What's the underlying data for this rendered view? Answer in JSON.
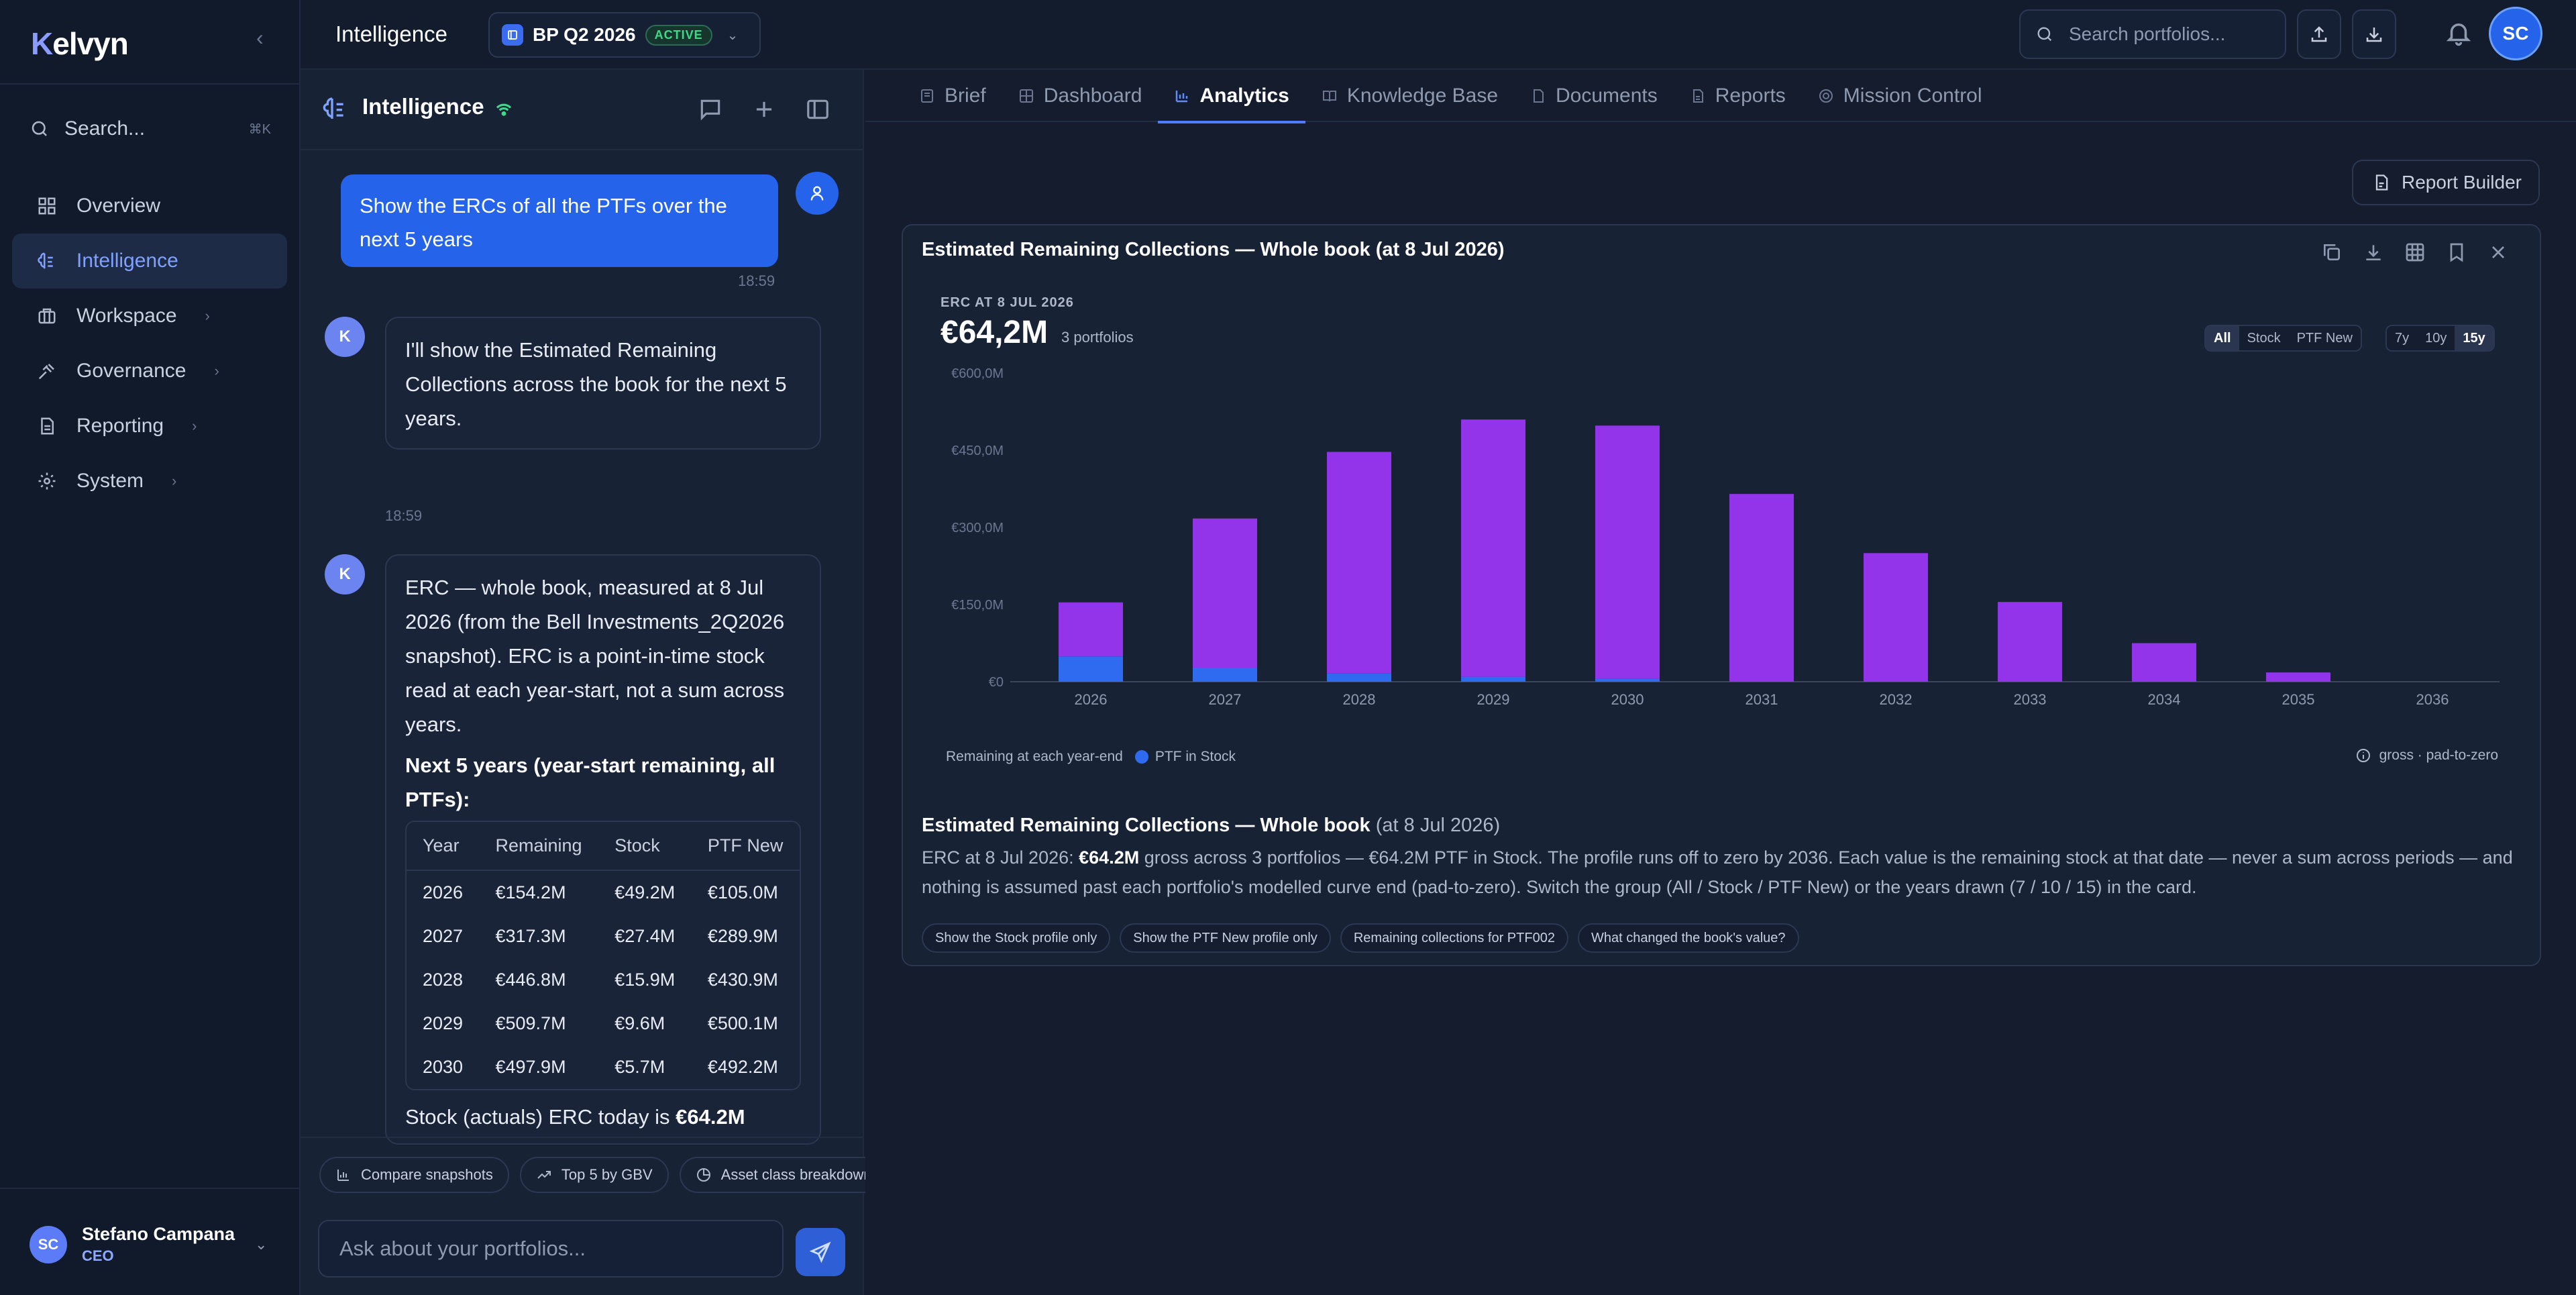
{
  "sidebar": {
    "logo_k": "K",
    "logo_rest": "elvyn",
    "search_label": "Search...",
    "search_kbd": "⌘K",
    "items": [
      {
        "label": "Overview",
        "icon": "grid-icon"
      },
      {
        "label": "Intelligence",
        "icon": "brain-icon",
        "active": true
      },
      {
        "label": "Workspace",
        "icon": "briefcase-icon"
      },
      {
        "label": "Governance",
        "icon": "gavel-icon"
      },
      {
        "label": "Reporting",
        "icon": "document-icon"
      },
      {
        "label": "System",
        "icon": "gear-icon"
      }
    ],
    "user": {
      "initials": "SC",
      "name": "Stefano Campana",
      "role": "CEO"
    }
  },
  "topbar": {
    "title": "Intelligence",
    "project": "BP Q2 2026",
    "project_status": "ACTIVE",
    "search_placeholder": "Search portfolios...",
    "avatar_initials": "SC"
  },
  "chat": {
    "title": "Intelligence",
    "user_message": "Show the ERCs of all the PTFs over the next 5 years",
    "user_time": "18:59",
    "bot_avatar": "K",
    "bot_msg1": "I'll show the Estimated Remaining Collections across the book for the next 5 years.",
    "bot_time": "18:59",
    "bot_msg2": "ERC — whole book, measured at 8 Jul 2026 (from the Bell Investments_2Q2026 snapshot). ERC is a point-in-time stock read at each year-start, not a sum across years.",
    "bot_heading": "Next 5 years (year-start remaining, all PTFs):",
    "table_headers": [
      "Year",
      "Remaining",
      "Stock",
      "PTF New"
    ],
    "table_rows": [
      [
        "2026",
        "€154.2M",
        "€49.2M",
        "€105.0M"
      ],
      [
        "2027",
        "€317.3M",
        "€27.4M",
        "€289.9M"
      ],
      [
        "2028",
        "€446.8M",
        "€15.9M",
        "€430.9M"
      ],
      [
        "2029",
        "€509.7M",
        "€9.6M",
        "€500.1M"
      ],
      [
        "2030",
        "€497.9M",
        "€5.7M",
        "€492.2M"
      ]
    ],
    "bot_tail_prefix": "Stock (actuals) ERC today is ",
    "bot_tail_value": "€64.2M",
    "quick_chips": [
      "Compare snapshots",
      "Top 5 by GBV",
      "Asset class breakdown"
    ],
    "input_placeholder": "Ask about your portfolios..."
  },
  "tabs": [
    "Brief",
    "Dashboard",
    "Analytics",
    "Knowledge Base",
    "Documents",
    "Reports",
    "Mission Control"
  ],
  "active_tab": "Analytics",
  "report_builder_label": "Report Builder",
  "card": {
    "title": "Estimated Remaining Collections — Whole book (at 8 Jul 2026)",
    "erc_label": "ERC AT 8 JUL 2026",
    "erc_value": "€64,2M",
    "erc_sub": "3 portfolios",
    "group_options": [
      "All",
      "Stock",
      "PTF New"
    ],
    "group_selected": "All",
    "range_options": [
      "7y",
      "10y",
      "15y"
    ],
    "range_selected": "15y",
    "legend_text": "Remaining at each year-end",
    "legend_series": "PTF in Stock",
    "gross_note": "gross · pad-to-zero",
    "summary_title_bold": "Estimated Remaining Collections — Whole book",
    "summary_title_dim": " (at 8 Jul 2026)",
    "summary_prefix": "ERC at 8 Jul 2026: ",
    "summary_value": "€64.2M",
    "summary_rest": " gross across 3 portfolios — €64.2M PTF in Stock. The profile runs off to zero by 2036. Each value is the remaining stock at that date — never a sum across periods — and nothing is assumed past each portfolio's modelled curve end (pad-to-zero). Switch the group (All / Stock / PTF New) or the years drawn (7 / 10 / 15) in the card.",
    "followups": [
      "Show the Stock profile only",
      "Show the PTF New profile only",
      "Remaining collections for PTF002",
      "What changed the book's value?"
    ]
  },
  "chart_data": {
    "type": "bar",
    "stacked": true,
    "categories": [
      "2026",
      "2027",
      "2028",
      "2029",
      "2030",
      "2031",
      "2032",
      "2033",
      "2034",
      "2035",
      "2036"
    ],
    "series": [
      {
        "name": "PTF in Stock",
        "color": "#2f6bf0",
        "values": [
          49.2,
          27.4,
          15.9,
          9.6,
          5.7,
          0,
          0,
          0,
          0,
          0,
          0
        ]
      },
      {
        "name": "",
        "color": "#9333ea",
        "values": [
          105.0,
          289.9,
          430.9,
          500.1,
          492.2,
          365,
          250,
          155,
          75,
          18,
          0
        ]
      }
    ],
    "yticks": [
      "€0",
      "€150,0M",
      "€300,0M",
      "€450,0M",
      "€600,0M"
    ],
    "ylim": [
      0,
      600
    ],
    "grid": false
  }
}
